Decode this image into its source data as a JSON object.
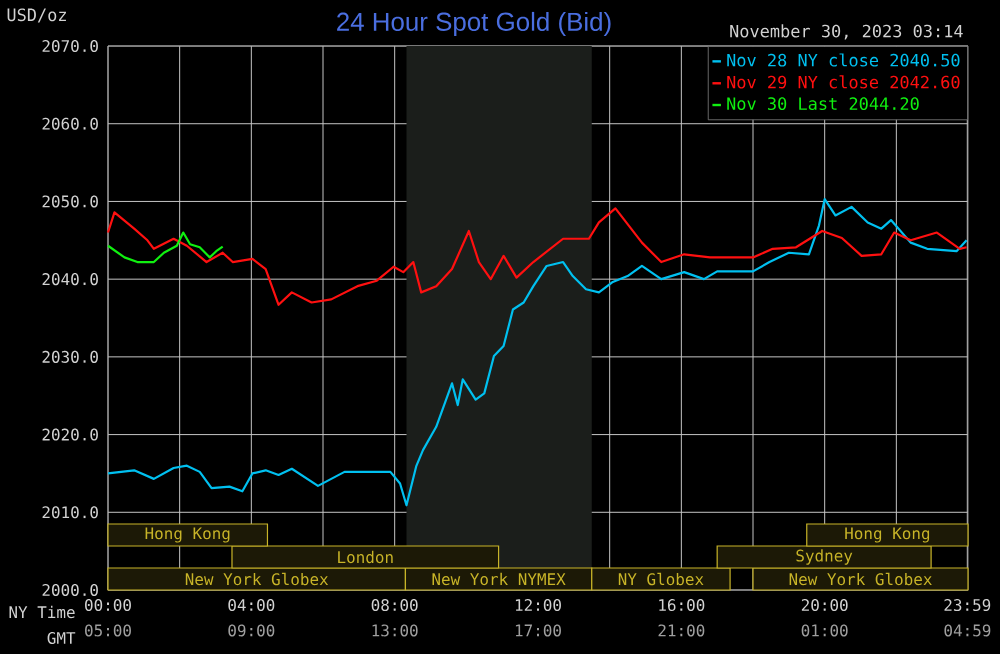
{
  "chart_data": {
    "type": "line",
    "title": "24 Hour Spot Gold (Bid)",
    "subtitle": "November 30, 2023 03:14",
    "xlabel": "NY Time",
    "x2label": "GMT",
    "ylabel": "USD/oz",
    "xlim": [
      0,
      24
    ],
    "ylim": [
      2000,
      2070
    ],
    "x2lim": [
      "2023-11-29T05:00",
      "2023-11-30T05:00"
    ],
    "xticks": [
      {
        "value": 0,
        "label": "00:00"
      },
      {
        "value": 2,
        "label": null
      },
      {
        "value": 4,
        "label": "04:00"
      },
      {
        "value": 6,
        "label": null
      },
      {
        "value": 8,
        "label": "08:00"
      },
      {
        "value": 10,
        "label": null
      },
      {
        "value": 12,
        "label": "12:00"
      },
      {
        "value": 14,
        "label": null
      },
      {
        "value": 16,
        "label": "16:00"
      },
      {
        "value": 18,
        "label": null
      },
      {
        "value": 20,
        "label": "20:00"
      },
      {
        "value": 22,
        "label": null
      },
      {
        "value": 23.98,
        "label": "23:59"
      }
    ],
    "x2ticks": [
      {
        "value": "2023-11-29T05:00",
        "label": "05:00"
      },
      {
        "value": "2023-11-29T09:00",
        "label": "09:00"
      },
      {
        "value": "2023-11-29T13:00",
        "label": "13:00"
      },
      {
        "value": "2023-11-29T17:00",
        "label": "17:00"
      },
      {
        "value": "2023-11-29T21:00",
        "label": "21:00"
      },
      {
        "value": "2023-11-30T01:00",
        "label": "01:00"
      },
      {
        "value": "2023-11-30T04:59",
        "label": "04:59"
      }
    ],
    "yticks": [
      {
        "value": 2000,
        "label": "2000.0"
      },
      {
        "value": 2010,
        "label": "2010.0"
      },
      {
        "value": 2020,
        "label": "2020.0"
      },
      {
        "value": 2030,
        "label": "2030.0"
      },
      {
        "value": 2040,
        "label": "2040.0"
      },
      {
        "value": 2050,
        "label": "2050.0"
      },
      {
        "value": 2060,
        "label": "2060.0"
      },
      {
        "value": 2070,
        "label": "2070.0"
      }
    ],
    "grid": true,
    "legend": "top right",
    "bands": [
      {
        "axis": "x",
        "from": 8.33,
        "to": 13.5,
        "color": "#1b1e1b"
      },
      {
        "axis": "x",
        "from": 0,
        "to": 8.3,
        "label": "New York Globex",
        "color": "#c8b428"
      },
      {
        "axis": "x",
        "from": 8.3,
        "to": 13.5,
        "label": "New York NYMEX",
        "color": "#c8b428"
      },
      {
        "axis": "x",
        "from": 13.5,
        "to": 17.36,
        "label": "NY Globex",
        "color": "#c8b428"
      },
      {
        "axis": "x",
        "from": 18.0,
        "to": 24,
        "label": "New York Globex",
        "color": "#c8b428"
      },
      {
        "axis": "x",
        "from": 3.46,
        "to": 10.9,
        "label": "London",
        "color": "#c8b428"
      },
      {
        "axis": "x",
        "from": 17.0,
        "to": 22.97,
        "label": "Sydney",
        "color": "#c8b428"
      },
      {
        "axis": "x",
        "from": 0,
        "to": 4.45,
        "label": "Hong Kong",
        "color": "#c8b428"
      },
      {
        "axis": "x",
        "from": 19.5,
        "to": 24,
        "label": "Hong Kong",
        "color": "#c8b428"
      }
    ],
    "series": [
      {
        "name": "Nov 28 NY close 2040.50",
        "color": "#00c0f0",
        "x": [
          0,
          0.73,
          1.28,
          1.83,
          2.2,
          2.56,
          2.89,
          3.39,
          3.75,
          4.03,
          4.4,
          4.76,
          5.13,
          5.86,
          6.6,
          7.33,
          7.88,
          8.15,
          8.33,
          8.6,
          8.79,
          9.16,
          9.6,
          9.76,
          9.9,
          10.26,
          10.5,
          10.77,
          11.04,
          11.3,
          11.6,
          11.87,
          12.24,
          12.7,
          12.97,
          13.34,
          13.7,
          14.07,
          14.5,
          14.9,
          15.44,
          16.08,
          16.63,
          17.0,
          18.0,
          18.46,
          19.0,
          19.56,
          19.84,
          20.0,
          20.3,
          20.75,
          21.2,
          21.58,
          21.85,
          22.4,
          22.86,
          23.68,
          23.96
        ],
        "values": [
          2015.0,
          2015.4,
          2014.3,
          2015.7,
          2016.0,
          2015.2,
          2013.1,
          2013.3,
          2012.7,
          2015.0,
          2015.4,
          2014.8,
          2015.6,
          2013.4,
          2015.2,
          2015.2,
          2015.2,
          2013.7,
          2010.9,
          2015.9,
          2018.0,
          2021.0,
          2026.6,
          2023.8,
          2027.1,
          2024.5,
          2025.3,
          2030.1,
          2031.4,
          2036.1,
          2037.0,
          2039.1,
          2041.7,
          2042.2,
          2040.4,
          2038.7,
          2038.3,
          2039.6,
          2040.4,
          2041.7,
          2040.0,
          2040.9,
          2040.0,
          2041.0,
          2041.0,
          2042.2,
          2043.4,
          2043.2,
          2046.9,
          2050.3,
          2048.2,
          2049.3,
          2047.3,
          2046.5,
          2047.6,
          2044.7,
          2043.9,
          2043.6,
          2045.0
        ]
      },
      {
        "name": "Nov 29 NY close 2042.60",
        "color": "#ff1010",
        "x": [
          0,
          0.18,
          0.73,
          1.1,
          1.28,
          1.83,
          2.2,
          2.75,
          3.2,
          3.48,
          4.03,
          4.4,
          4.76,
          5.13,
          5.68,
          6.23,
          6.96,
          7.5,
          7.97,
          8.24,
          8.52,
          8.74,
          9.16,
          9.6,
          10.07,
          10.35,
          10.68,
          11.04,
          11.4,
          11.87,
          12.7,
          13.42,
          13.7,
          14.16,
          14.9,
          15.44,
          16.08,
          16.8,
          18.0,
          18.55,
          19.2,
          19.93,
          20.48,
          21.03,
          21.58,
          21.94,
          22.4,
          23.13,
          23.77,
          23.96
        ],
        "values": [
          2046.0,
          2048.6,
          2046.5,
          2045.0,
          2043.9,
          2045.2,
          2044.3,
          2042.2,
          2043.4,
          2042.2,
          2042.6,
          2041.3,
          2036.7,
          2038.3,
          2037.0,
          2037.4,
          2039.1,
          2039.8,
          2041.6,
          2040.9,
          2042.2,
          2038.3,
          2039.1,
          2041.3,
          2046.2,
          2042.2,
          2040.0,
          2043.0,
          2040.2,
          2042.2,
          2045.2,
          2045.2,
          2047.3,
          2049.1,
          2044.7,
          2042.2,
          2043.2,
          2042.8,
          2042.8,
          2043.9,
          2044.1,
          2046.2,
          2045.3,
          2043.0,
          2043.2,
          2046.0,
          2045.0,
          2046.0,
          2043.9,
          2044.1
        ]
      },
      {
        "name": "Nov 30 Last 2044.20",
        "color": "#10f010",
        "x": [
          0,
          0.46,
          0.82,
          1.28,
          1.56,
          1.92,
          2.1,
          2.29,
          2.56,
          2.84,
          3.02,
          3.2
        ],
        "values": [
          2044.3,
          2042.8,
          2042.2,
          2042.2,
          2043.4,
          2044.3,
          2046.0,
          2044.5,
          2044.1,
          2042.8,
          2043.6,
          2044.2
        ]
      }
    ]
  }
}
